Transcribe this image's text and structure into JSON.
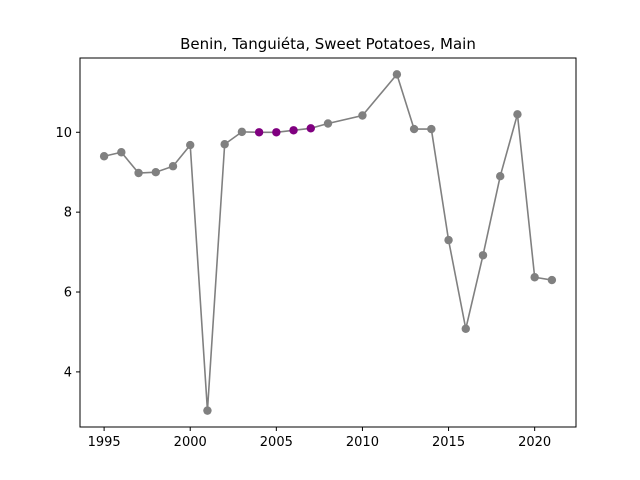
{
  "chart_data": {
    "type": "line",
    "title": "Benin, Tanguiéta, Sweet Potatoes, Main",
    "xlabel": "",
    "ylabel": "",
    "xlim": [
      1993.6,
      2022.4
    ],
    "ylim": [
      2.62,
      11.86
    ],
    "xticks": [
      1995,
      2000,
      2005,
      2010,
      2015,
      2020
    ],
    "yticks": [
      4,
      6,
      8,
      10
    ],
    "grid": false,
    "line_color": "#808080",
    "point_color": "#808080",
    "highlight_color": "#800080",
    "x": [
      1995,
      1996,
      1997,
      1998,
      1999,
      2000,
      2001,
      2002,
      2003,
      2004,
      2005,
      2006,
      2007,
      2008,
      2010,
      2012,
      2013,
      2014,
      2015,
      2016,
      2017,
      2018,
      2019,
      2020,
      2021
    ],
    "values": [
      9.4,
      9.5,
      8.98,
      9.0,
      9.15,
      9.68,
      3.03,
      9.7,
      10.01,
      10.0,
      10.0,
      10.05,
      10.1,
      10.22,
      10.42,
      11.45,
      10.08,
      10.08,
      7.3,
      5.08,
      6.92,
      8.9,
      10.45,
      6.37,
      6.3
    ],
    "highlighted_x": [
      2004,
      2005,
      2006,
      2007
    ]
  }
}
